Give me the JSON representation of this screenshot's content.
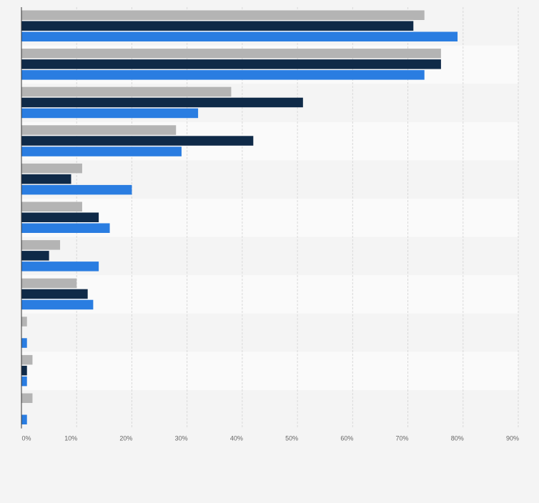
{
  "chart_data": {
    "type": "bar",
    "orientation": "horizontal",
    "categories": [
      "",
      "",
      "",
      "",
      "",
      "",
      "",
      "",
      "",
      "",
      ""
    ],
    "series": [
      {
        "values": [
          73,
          76,
          38,
          28,
          11,
          11,
          7,
          10,
          1,
          2,
          2
        ]
      },
      {
        "values": [
          71,
          76,
          51,
          42,
          9,
          14,
          5,
          12,
          0,
          1,
          0
        ]
      },
      {
        "values": [
          79,
          73,
          32,
          29,
          20,
          16,
          14,
          13,
          1,
          1,
          1
        ]
      }
    ],
    "xlim": [
      0,
      90
    ],
    "xticks": [
      "0%",
      "10%",
      "20%",
      "30%",
      "40%",
      "50%",
      "60%",
      "70%",
      "80%",
      "90%"
    ],
    "tick_step": 10,
    "grid": true,
    "legend": "none",
    "colors": {
      "series": [
        "#b4b4b4",
        "#0f2a48",
        "#2a7de1"
      ],
      "band_even": "#f4f4f4",
      "band_odd": "#fafafa",
      "grid": "#d9d9d9",
      "axis": "#333333"
    }
  }
}
